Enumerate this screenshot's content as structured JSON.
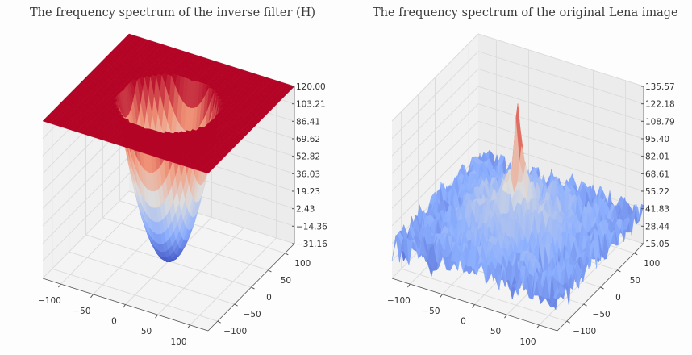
{
  "chart_data": [
    {
      "type": "surface",
      "title": "The frequency spectrum of the inverse filter (H)",
      "colormap": "coolwarm",
      "xticks": [
        "−100",
        "−50",
        "0",
        "50",
        "100"
      ],
      "yticks": [
        "−100",
        "−50",
        "0",
        "50",
        "100"
      ],
      "xlim": [
        -128,
        128
      ],
      "ylim": [
        -128,
        128
      ],
      "zticks": [
        "−31.16",
        "−14.36",
        "2.43",
        "19.23",
        "36.03",
        "52.82",
        "69.62",
        "86.41",
        "103.21",
        "120.00"
      ],
      "zlim": [
        -31.16,
        120.0
      ],
      "shape": "bowl clipped flat at 120 outside a central disc, minimum at center"
    },
    {
      "type": "surface",
      "title": "The frequency spectrum of the original Lena image",
      "colormap": "coolwarm",
      "xticks": [
        "−100",
        "−50",
        "0",
        "50",
        "100"
      ],
      "yticks": [
        "−100",
        "−50",
        "0",
        "50",
        "100"
      ],
      "xlim": [
        -128,
        128
      ],
      "ylim": [
        -128,
        128
      ],
      "zticks": [
        "15.05",
        "28.44",
        "41.83",
        "55.22",
        "68.61",
        "82.01",
        "95.40",
        "108.79",
        "122.18",
        "135.57"
      ],
      "zlim": [
        15.05,
        135.57
      ],
      "shape": "noisy log-magnitude spectrum with sharp peak at center"
    }
  ],
  "colors": {
    "low": "#3b4cc0",
    "mid": "#dddddd",
    "high": "#b40426",
    "pane": "#f2f2f2",
    "grid": "#dcdcdc"
  }
}
